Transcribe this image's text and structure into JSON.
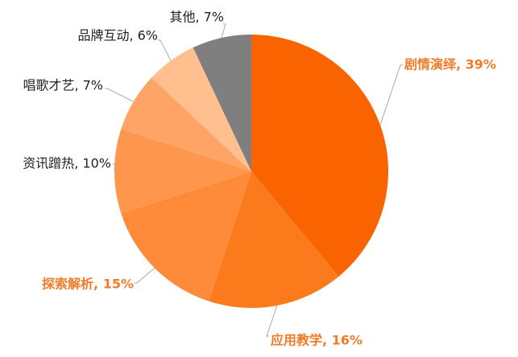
{
  "chart_data": {
    "type": "pie",
    "values": [
      39,
      16,
      15,
      10,
      7,
      6,
      7
    ],
    "value_labels": [
      "剧情演绎, 39%",
      "应用教学, 16%",
      "探索解析, 15%",
      "资讯蹭热, 10%",
      "唱歌才艺, 7%",
      "品牌互动, 6%",
      "其他, 7%"
    ],
    "colors": [
      "#f96400",
      "#fb7a1c",
      "#fd8b3a",
      "#fe974d",
      "#fea466",
      "#ffbf8e",
      "#7f7f7f"
    ],
    "highlighted": [
      true,
      true,
      true,
      false,
      false,
      false,
      false
    ],
    "highlight_color": "#f07c2a"
  }
}
